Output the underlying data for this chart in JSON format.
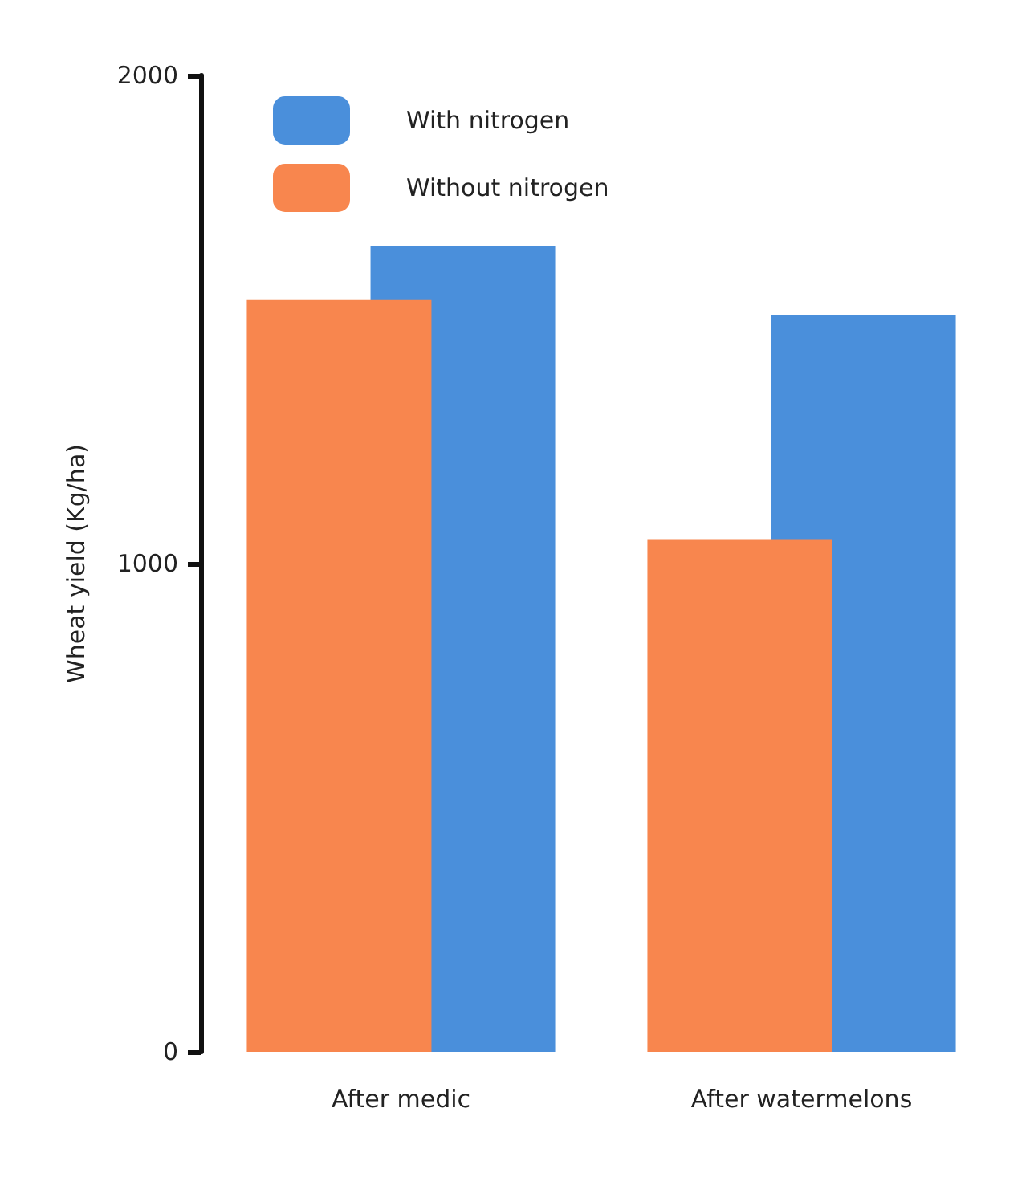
{
  "chart_data": {
    "type": "bar",
    "ylabel": "Wheat yield (Kg/ha)",
    "categories": [
      "After medic",
      "After watermelons"
    ],
    "series": [
      {
        "name": "With nitrogen",
        "color": "#4a8fdb",
        "values": [
          1650,
          1510
        ]
      },
      {
        "name": "Without nitrogen",
        "color": "#f8864e",
        "values": [
          1540,
          1050
        ]
      }
    ],
    "ylim": [
      0,
      2000
    ],
    "yticks": [
      0,
      1000,
      2000
    ],
    "grid": false,
    "legend": "top left"
  }
}
